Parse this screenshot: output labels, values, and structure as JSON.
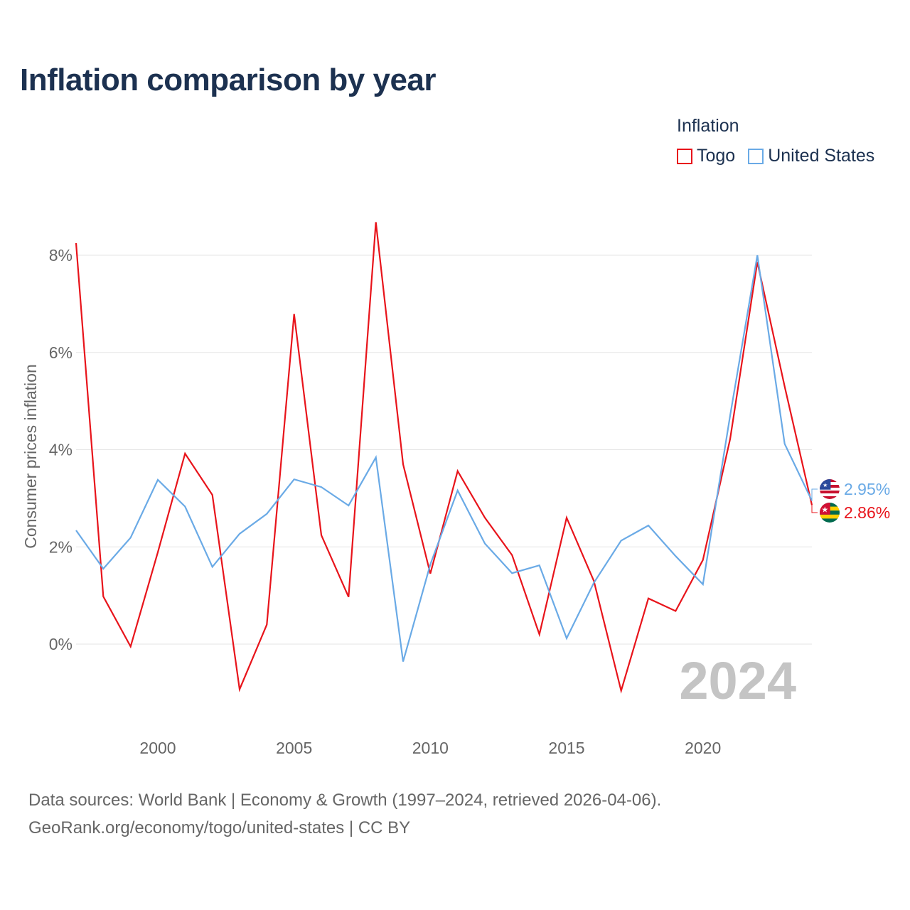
{
  "page": {
    "title": "Inflation comparison by year",
    "legend_title": "Inflation",
    "source_line1": "Data sources: World Bank | Economy & Growth (1997–2024, retrieved 2026-04-06).",
    "source_line2": "GeoRank.org/economy/togo/united-states | CC BY"
  },
  "colors": {
    "togo": "#e8141b",
    "united_states": "#6aaae6",
    "axis_text": "#666666",
    "grid": "#e6e6e6",
    "watermark": "#c4c4c4",
    "title": "#1c3150"
  },
  "chart_data": {
    "type": "line",
    "title": "Inflation comparison by year",
    "xlabel": "",
    "ylabel": "Consumer prices inflation",
    "x": [
      1997,
      1998,
      1999,
      2000,
      2001,
      2002,
      2003,
      2004,
      2005,
      2006,
      2007,
      2008,
      2009,
      2010,
      2011,
      2012,
      2013,
      2014,
      2015,
      2016,
      2017,
      2018,
      2019,
      2020,
      2021,
      2022,
      2023,
      2024
    ],
    "xlim": [
      1997,
      2024
    ],
    "ylim": [
      -1.5,
      8.9
    ],
    "xticks": [
      2000,
      2005,
      2010,
      2015,
      2020
    ],
    "yticks": [
      0,
      2,
      4,
      6,
      8
    ],
    "ytick_labels": [
      "0%",
      "2%",
      "4%",
      "6%",
      "8%"
    ],
    "legend_position": "top-right",
    "watermark_year": "2024",
    "series": [
      {
        "name": "Togo",
        "key": "togo",
        "values": [
          8.25,
          0.98,
          -0.05,
          1.89,
          3.92,
          3.07,
          -0.93,
          0.4,
          6.79,
          2.24,
          0.97,
          8.68,
          3.7,
          1.45,
          3.56,
          2.6,
          1.83,
          0.2,
          2.6,
          1.3,
          -0.96,
          0.94,
          0.68,
          1.73,
          4.22,
          7.86,
          5.3,
          2.86
        ],
        "end_label": "2.86%",
        "flag": "togo-flag-icon"
      },
      {
        "name": "United States",
        "key": "united_states",
        "values": [
          2.34,
          1.55,
          2.19,
          3.38,
          2.83,
          1.59,
          2.27,
          2.68,
          3.39,
          3.23,
          2.85,
          3.84,
          -0.36,
          1.64,
          3.16,
          2.07,
          1.46,
          1.62,
          0.12,
          1.26,
          2.13,
          2.44,
          1.81,
          1.23,
          4.7,
          8.0,
          4.12,
          2.95
        ],
        "end_label": "2.95%",
        "flag": "us-flag-icon"
      }
    ]
  }
}
